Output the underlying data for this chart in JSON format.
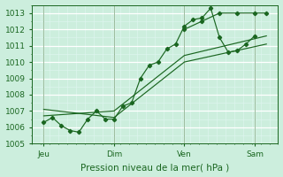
{
  "xlabel": "Pression niveau de la mer( hPa )",
  "bg_color": "#cceedd",
  "plot_bg_color": "#cceedd",
  "grid_major_color": "#ffffff",
  "grid_minor_color": "#ddf5ee",
  "line_color": "#1a6620",
  "ylim": [
    1005,
    1013.5
  ],
  "yticks": [
    1005,
    1006,
    1007,
    1008,
    1009,
    1010,
    1011,
    1012,
    1013
  ],
  "xlim": [
    0,
    168
  ],
  "day_positions": [
    8,
    56,
    104,
    152
  ],
  "day_labels": [
    "Jeu",
    "Dim",
    "Ven",
    "Sam"
  ],
  "vline_positions": [
    8,
    56,
    104,
    152
  ],
  "series1_x": [
    8,
    14,
    20,
    26,
    32,
    38,
    44,
    50,
    56,
    62,
    68,
    74,
    80,
    86,
    92,
    98,
    104,
    110,
    116,
    122,
    128,
    134,
    140,
    146,
    152
  ],
  "series1_y": [
    1006.3,
    1006.6,
    1006.1,
    1005.8,
    1005.7,
    1006.5,
    1007.0,
    1006.5,
    1006.5,
    1007.3,
    1007.5,
    1009.0,
    1009.8,
    1010.0,
    1010.8,
    1011.1,
    1012.2,
    1012.6,
    1012.7,
    1013.3,
    1011.5,
    1010.6,
    1010.7,
    1011.1,
    1011.6
  ],
  "series2_x": [
    8,
    56,
    104,
    160
  ],
  "series2_y": [
    1006.7,
    1007.0,
    1010.4,
    1011.6
  ],
  "series3_x": [
    8,
    56,
    104,
    160
  ],
  "series3_y": [
    1007.1,
    1006.6,
    1010.0,
    1011.1
  ],
  "series4_x": [
    104,
    116,
    128,
    140,
    152,
    160
  ],
  "series4_y": [
    1012.0,
    1012.5,
    1013.0,
    1013.0,
    1013.0,
    1013.0
  ],
  "font_color": "#1a6620",
  "font_size_tick": 6.5,
  "font_size_xlabel": 7.5,
  "marker_size": 2.2,
  "line_width": 0.85,
  "figsize": [
    3.2,
    2.0
  ],
  "dpi": 100
}
